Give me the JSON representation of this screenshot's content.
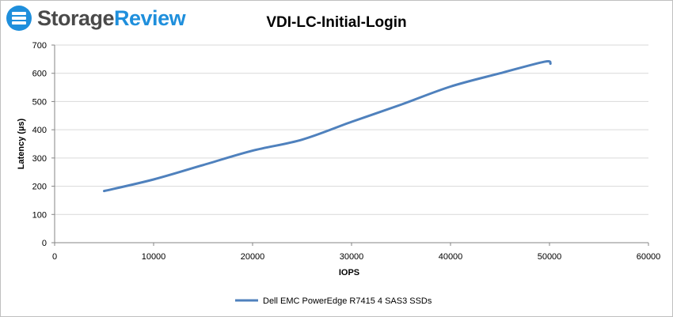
{
  "brand": {
    "name_part1": "Storage",
    "name_part2": "Review",
    "accent_color": "#1f8fdc",
    "text_color": "#4a4a4a"
  },
  "chart_data": {
    "type": "line",
    "title": "VDI-LC-Initial-Login",
    "xlabel": "IOPS",
    "ylabel": "Latency (µs)",
    "xlim": [
      0,
      60000
    ],
    "ylim": [
      0,
      700
    ],
    "xticks": [
      0,
      10000,
      20000,
      30000,
      40000,
      50000,
      60000
    ],
    "yticks": [
      0,
      100,
      200,
      300,
      400,
      500,
      600,
      700
    ],
    "grid": true,
    "legend_position": "bottom",
    "series": [
      {
        "name": "Dell EMC PowerEdge R7415 4 SAS3 SSDs",
        "color": "#4f81bd",
        "points": [
          {
            "x": 5000,
            "y": 183
          },
          {
            "x": 10000,
            "y": 224
          },
          {
            "x": 15000,
            "y": 275
          },
          {
            "x": 20000,
            "y": 326
          },
          {
            "x": 25000,
            "y": 365
          },
          {
            "x": 30000,
            "y": 428
          },
          {
            "x": 35000,
            "y": 489
          },
          {
            "x": 40000,
            "y": 553
          },
          {
            "x": 45000,
            "y": 600
          },
          {
            "x": 49500,
            "y": 641
          },
          {
            "x": 50100,
            "y": 634
          }
        ]
      }
    ]
  }
}
